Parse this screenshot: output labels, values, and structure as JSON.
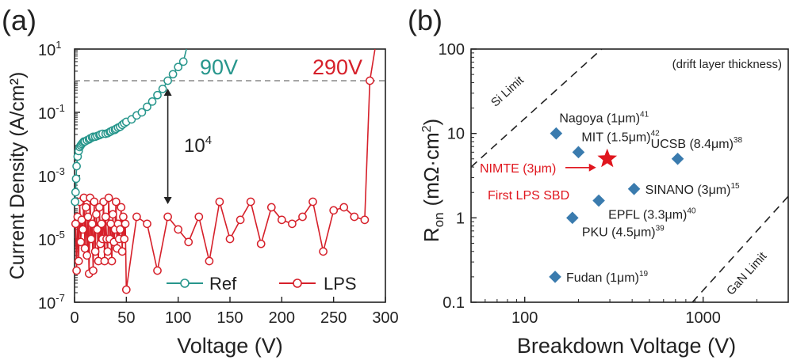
{
  "colors": {
    "ref": "#27968C",
    "lps": "#D6202A",
    "marker": "#3A7BAE",
    "nimte": "#E0161E",
    "axis": "#222222",
    "dashed_threshold": "#888888"
  },
  "chart_data": [
    {
      "panel_label": "(a)",
      "type": "line",
      "xlabel": "Voltage (V)",
      "ylabel": "Current Density (A/cm²)",
      "xlim": [
        0,
        300
      ],
      "ylim": [
        1e-07,
        10
      ],
      "yscale": "log",
      "x_ticks": [
        "0",
        "50",
        "100",
        "150",
        "200",
        "250",
        "300"
      ],
      "y_ticks": [
        {
          "base": "10",
          "exp": "-7",
          "value": 1e-07
        },
        {
          "base": "10",
          "exp": "-5",
          "value": 1e-05
        },
        {
          "base": "10",
          "exp": "-3",
          "value": 0.001
        },
        {
          "base": "10",
          "exp": "-1",
          "value": 0.1
        },
        {
          "base": "10",
          "exp": "1",
          "value": 10
        }
      ],
      "threshold_line": 1.0,
      "annotations": {
        "ref_breakdown": "90V",
        "lps_breakdown": "290V",
        "ratio_base": "10",
        "ratio_exp": "4",
        "ratio_x": 90,
        "ratio_y_top": 1.0,
        "ratio_y_bottom": 0.0001
      },
      "legend": {
        "position": "bottom-right",
        "ref": "Ref",
        "lps": "LPS"
      },
      "series": [
        {
          "name": "Ref",
          "x": [
            0.5,
            1,
            1.5,
            2,
            3,
            4,
            5,
            6,
            7,
            8,
            9,
            10,
            12,
            14,
            15,
            17,
            18,
            20,
            22,
            24,
            25,
            27,
            30,
            32,
            34,
            35,
            37,
            39,
            40,
            42,
            44,
            46,
            48,
            50,
            55,
            60,
            65,
            70,
            75,
            80,
            85,
            90,
            95,
            100,
            105,
            108
          ],
          "y": [
            0.00015,
            0.0003,
            0.0008,
            0.002,
            0.004,
            0.006,
            0.008,
            0.009,
            0.01,
            0.011,
            0.012,
            0.012,
            0.013,
            0.014,
            0.015,
            0.016,
            0.017,
            0.017,
            0.018,
            0.019,
            0.02,
            0.021,
            0.021,
            0.022,
            0.024,
            0.025,
            0.027,
            0.028,
            0.03,
            0.033,
            0.035,
            0.04,
            0.045,
            0.05,
            0.06,
            0.08,
            0.1,
            0.15,
            0.22,
            0.35,
            0.55,
            1.0,
            1.6,
            2.7,
            4.0,
            10
          ]
        },
        {
          "name": "LPS",
          "x": [
            1,
            2,
            3,
            4,
            5,
            6,
            7,
            8,
            9,
            10,
            11,
            12,
            13,
            14,
            15,
            16,
            17,
            18,
            19,
            20,
            21,
            22,
            23,
            24,
            25,
            26,
            27,
            28,
            29,
            30,
            31,
            32,
            33,
            34,
            35,
            36,
            37,
            38,
            39,
            40,
            41,
            42,
            43,
            44,
            45,
            46,
            47,
            48,
            49,
            50,
            60,
            70,
            80,
            90,
            100,
            110,
            120,
            130,
            140,
            150,
            160,
            170,
            180,
            190,
            200,
            210,
            220,
            230,
            240,
            250,
            260,
            270,
            280,
            285,
            290
          ],
          "y": [
            3e-05,
            1e-06,
            5e-05,
            2e-06,
            0.00015,
            8e-06,
            4e-05,
            2e-05,
            0.0002,
            5e-06,
            0.0001,
            3e-06,
            5e-05,
            8e-07,
            0.0002,
            1e-05,
            3e-05,
            1e-06,
            0.00015,
            4e-06,
            6e-05,
            2e-05,
            2e-06,
            0.0001,
            7e-06,
            3e-05,
            1e-05,
            0.00015,
            2e-06,
            5e-05,
            1e-05,
            4e-06,
            0.0002,
            1e-05,
            3e-05,
            2e-06,
            6e-05,
            8e-06,
            2e-05,
            0.00015,
            5e-06,
            3e-05,
            1e-05,
            2e-05,
            0.0001,
            4e-06,
            5e-05,
            1e-05,
            3e-05,
            2.5e-07,
            5e-05,
            3e-05,
            1e-06,
            5e-05,
            2e-05,
            8e-06,
            5e-05,
            2e-06,
            0.00015,
            1e-05,
            4e-05,
            0.00015,
            7e-06,
            0.0001,
            4e-05,
            3e-05,
            5e-05,
            0.00015,
            4e-06,
            8e-05,
            0.0001,
            5e-05,
            4e-05,
            1,
            10
          ]
        }
      ]
    },
    {
      "panel_label": "(b)",
      "type": "scatter",
      "xlabel": "Breakdown Voltage (V)",
      "ylabel_main": "R",
      "ylabel_sub": "on",
      "ylabel_units": "(mΩ·cm",
      "ylabel_units_exp": "2",
      "ylabel_units_close": ")",
      "xscale": "log",
      "yscale": "log",
      "xlim": [
        50,
        3000
      ],
      "ylim": [
        0.1,
        100
      ],
      "x_ticks": [
        {
          "label": "100",
          "value": 100
        },
        {
          "label": "1000",
          "value": 1000
        }
      ],
      "y_ticks": [
        {
          "label": "0.1",
          "value": 0.1
        },
        {
          "label": "1",
          "value": 1
        },
        {
          "label": "10",
          "value": 10
        },
        {
          "label": "100",
          "value": 100
        }
      ],
      "corner_note": "(drift layer thickness)",
      "si_limit": {
        "label": "Si Limit",
        "x": [
          50,
          270
        ],
        "y": [
          4,
          100
        ]
      },
      "gan_limit": {
        "label": "GaN Limit",
        "x": [
          870,
          3000
        ],
        "y": [
          0.1,
          1.8
        ]
      },
      "points": [
        {
          "name": "Nagoya (1μm)",
          "ref": "41",
          "x": 150,
          "y": 10,
          "label_side": "above"
        },
        {
          "name": "MIT (1.5μm)",
          "ref": "42",
          "x": 200,
          "y": 6,
          "label_side": "above"
        },
        {
          "name": "UCSB (8.4μm)",
          "ref": "38",
          "x": 720,
          "y": 5,
          "label_side": "above"
        },
        {
          "name": "SINANO (3μm)",
          "ref": "15",
          "x": 410,
          "y": 2.2,
          "label_side": "right"
        },
        {
          "name": "EPFL (3.3μm)",
          "ref": "40",
          "x": 260,
          "y": 1.6,
          "label_side": "below"
        },
        {
          "name": "PKU (4.5μm)",
          "ref": "39",
          "x": 185,
          "y": 1.0,
          "label_side": "below"
        },
        {
          "name": "Fudan (1μm)",
          "ref": "19",
          "x": 148,
          "y": 0.2,
          "label_side": "right"
        }
      ],
      "highlight": {
        "name_line1": "NIMTE (3μm)",
        "name_line2": "First  LPS SBD",
        "x": 290,
        "y": 5
      }
    }
  ]
}
